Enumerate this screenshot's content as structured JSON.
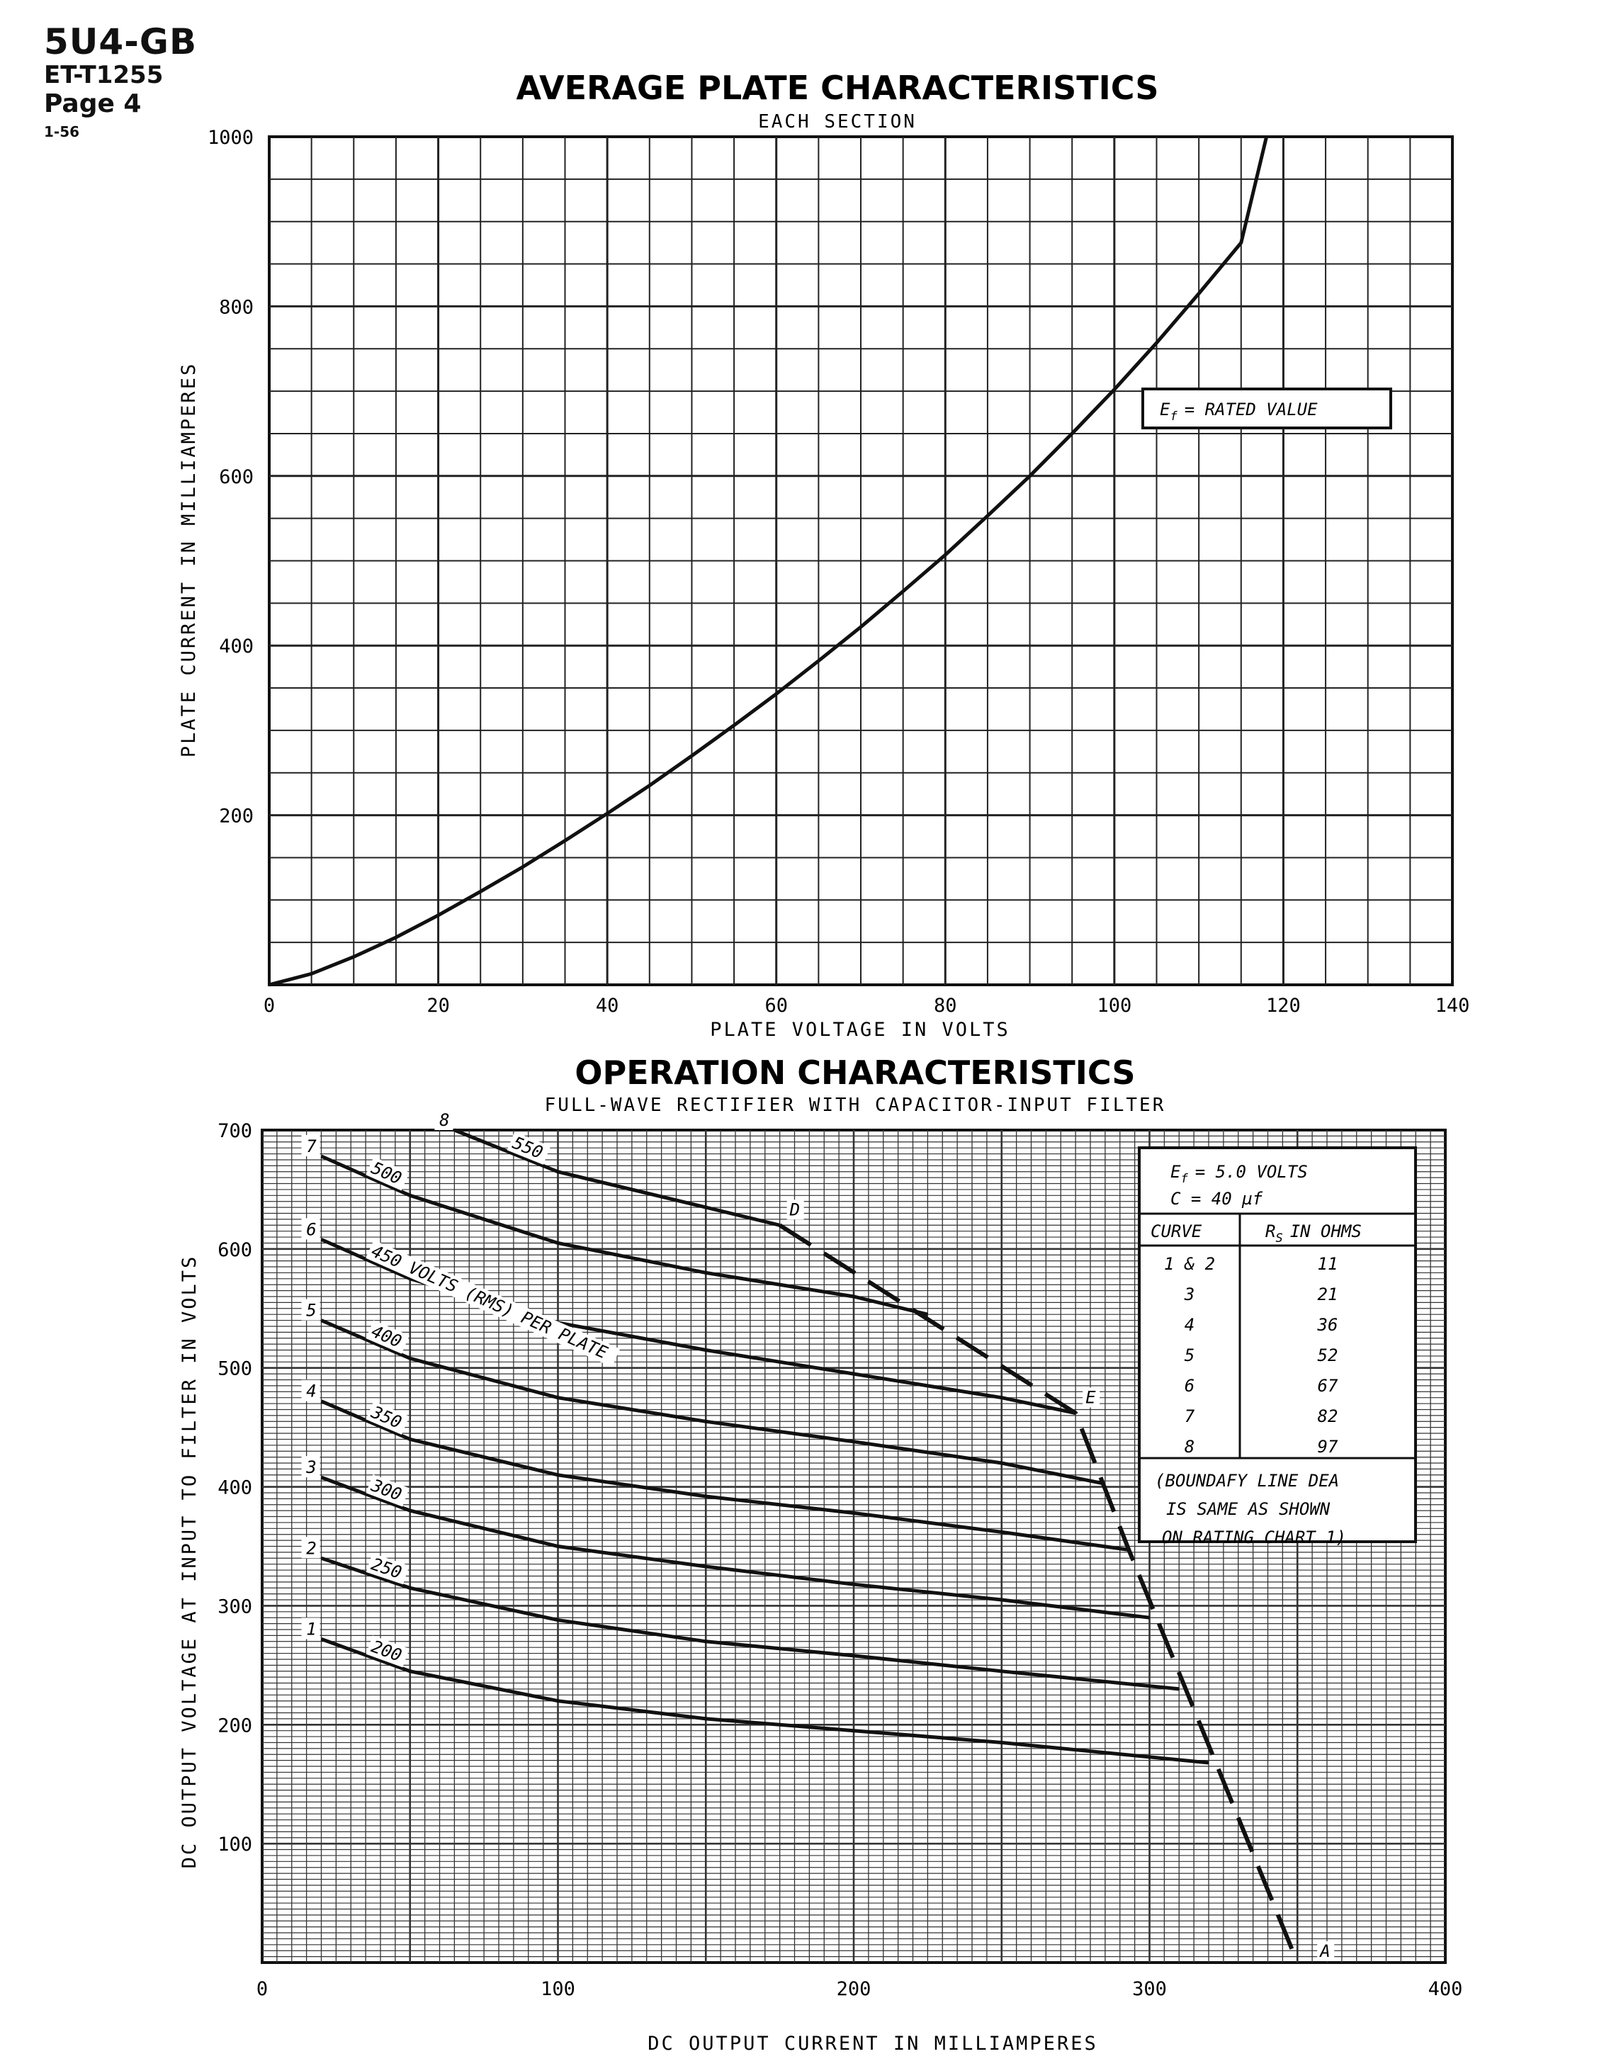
{
  "header": {
    "part": "5U4-GB",
    "doc": "ET-T1255",
    "page": "Page 4",
    "date": "1-56"
  },
  "chart_data": [
    {
      "type": "line",
      "title": "AVERAGE PLATE CHARACTERISTICS",
      "subtitle": "EACH SECTION",
      "xlabel": "PLATE VOLTAGE IN VOLTS",
      "ylabel": "PLATE CURRENT IN MILLIAMPERES",
      "xlim": [
        0,
        140
      ],
      "ylim": [
        0,
        1000
      ],
      "x_ticks": [
        "0",
        "20",
        "40",
        "60",
        "80",
        "100",
        "120",
        "140"
      ],
      "y_ticks": [
        "200",
        "400",
        "600",
        "800",
        "1000"
      ],
      "grid": true,
      "annotation": {
        "symbol": "E",
        "subscript": "f",
        "text": "= RATED VALUE"
      },
      "series": [
        {
          "x": [
            0,
            5,
            10,
            15,
            20,
            25,
            30,
            35,
            40,
            45,
            50,
            55,
            60,
            65,
            70,
            75,
            80,
            85,
            90,
            95,
            100,
            105,
            110,
            115,
            118
          ],
          "y": [
            0,
            13,
            33,
            56,
            82,
            110,
            139,
            170,
            202,
            235,
            270,
            306,
            343,
            382,
            422,
            464,
            507,
            553,
            600,
            650,
            702,
            757,
            815,
            875,
            1000
          ]
        }
      ]
    },
    {
      "type": "line",
      "title": "OPERATION CHARACTERISTICS",
      "subtitle": "FULL-WAVE RECTIFIER WITH CAPACITOR-INPUT FILTER",
      "xlabel": "DC OUTPUT CURRENT IN MILLIAMPERES",
      "ylabel": "DC OUTPUT VOLTAGE AT INPUT TO FILTER IN VOLTS",
      "xlim": [
        0,
        400
      ],
      "ylim": [
        0,
        700
      ],
      "x_ticks": [
        "0",
        "100",
        "200",
        "300",
        "400"
      ],
      "y_ticks": [
        "100",
        "200",
        "300",
        "400",
        "500",
        "600",
        "700"
      ],
      "grid": true,
      "series": [
        {
          "name": "200",
          "curve": "1",
          "x": [
            20,
            50,
            100,
            150,
            200,
            250,
            320
          ],
          "y": [
            272,
            245,
            220,
            205,
            195,
            185,
            168
          ]
        },
        {
          "name": "250",
          "curve": "2",
          "x": [
            20,
            50,
            100,
            150,
            200,
            250,
            310
          ],
          "y": [
            340,
            315,
            288,
            270,
            258,
            245,
            230
          ]
        },
        {
          "name": "300",
          "curve": "3",
          "x": [
            20,
            50,
            100,
            150,
            200,
            250,
            300
          ],
          "y": [
            408,
            380,
            350,
            333,
            318,
            305,
            290
          ]
        },
        {
          "name": "350",
          "curve": "4",
          "x": [
            20,
            50,
            100,
            150,
            200,
            250,
            293
          ],
          "y": [
            472,
            440,
            410,
            392,
            378,
            362,
            347
          ]
        },
        {
          "name": "400",
          "curve": "5",
          "x": [
            20,
            50,
            100,
            150,
            200,
            250,
            284
          ],
          "y": [
            540,
            508,
            475,
            455,
            438,
            420,
            403
          ]
        },
        {
          "name": "450 VOLTS (RMS) PER PLATE",
          "curve": "6",
          "x": [
            20,
            50,
            100,
            150,
            200,
            250,
            275
          ],
          "y": [
            608,
            575,
            538,
            515,
            495,
            475,
            462
          ]
        },
        {
          "name": "500",
          "curve": "7",
          "x": [
            20,
            50,
            100,
            150,
            200,
            225
          ],
          "y": [
            678,
            645,
            605,
            580,
            560,
            545
          ]
        },
        {
          "name": "550",
          "curve": "8",
          "x": [
            65,
            100,
            150,
            175
          ],
          "y": [
            700,
            665,
            635,
            620
          ]
        }
      ],
      "boundary": {
        "x": [
          175,
          275,
          293,
          350
        ],
        "y": [
          620,
          462,
          347,
          0
        ],
        "points": [
          "D",
          "E",
          "A"
        ]
      },
      "legend": {
        "placement": "top-right",
        "ef_symbol": "E",
        "ef_sub": "f",
        "ef_text": "= 5.0 VOLTS",
        "c_line": "C = 40 µf",
        "col_curve": "CURVE",
        "col_rs_symbol": "R",
        "col_rs_sub": "S",
        "col_rs_text": "IN OHMS",
        "rows": [
          {
            "curve": "1 & 2",
            "rs": "11"
          },
          {
            "curve": "3",
            "rs": "21"
          },
          {
            "curve": "4",
            "rs": "36"
          },
          {
            "curve": "5",
            "rs": "52"
          },
          {
            "curve": "6",
            "rs": "67"
          },
          {
            "curve": "7",
            "rs": "82"
          },
          {
            "curve": "8",
            "rs": "97"
          }
        ],
        "note": [
          "(BOUNDAFY LINE DEA",
          "IS SAME AS SHOWN",
          "ON RATING CHART 1)"
        ]
      }
    }
  ]
}
